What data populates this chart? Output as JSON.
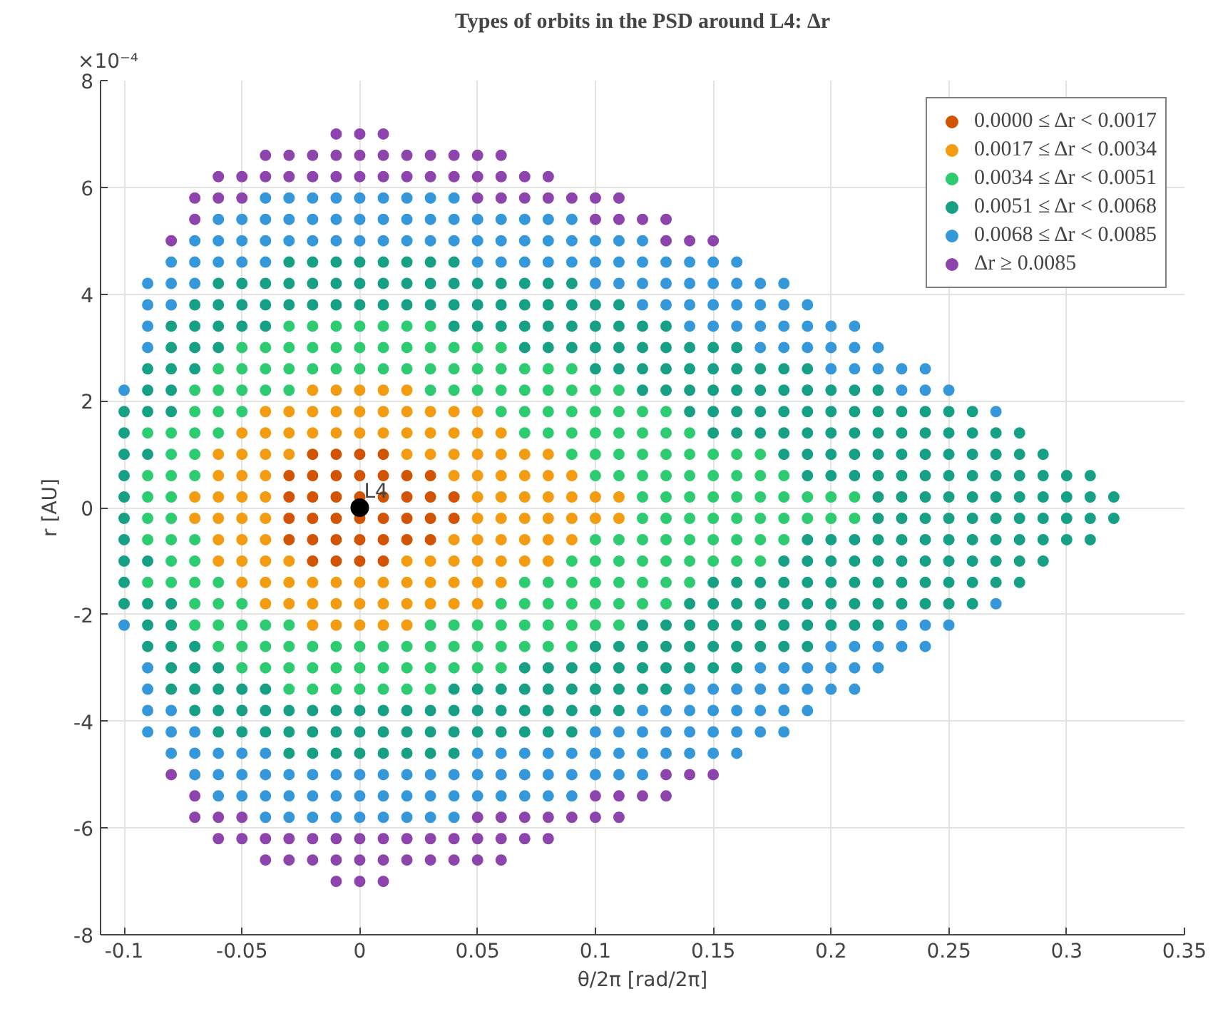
{
  "chart_data": {
    "type": "scatter",
    "title": "Types of orbits in the PSD around L4: Δr",
    "xlabel": "θ/2π [rad/2π]",
    "ylabel": "r [AU]",
    "annotations": [
      "×10⁻⁴",
      {
        "text": "L4",
        "x": 0,
        "y": 0
      }
    ],
    "xlim": [
      -0.11,
      0.35
    ],
    "ylim": [
      -8,
      8
    ],
    "xticks": [
      -0.1,
      -0.05,
      0,
      0.05,
      0.1,
      0.15,
      0.2,
      0.25,
      0.3,
      0.35
    ],
    "yticks": [
      -8,
      -6,
      -4,
      -2,
      0,
      2,
      4,
      6,
      8
    ],
    "grid": true,
    "legend": "top right",
    "marker": "circle",
    "series": [
      {
        "name": "0.0000 ≤ Δr < 0.0017",
        "color": "#d35400",
        "x": [
          -0.02,
          -0.01,
          0,
          0.01,
          -0.03,
          -0.02,
          -0.01,
          0,
          0.01,
          0.02,
          0.03,
          -0.03,
          -0.02,
          -0.01,
          0,
          0.01,
          0.02,
          0.03,
          0.04,
          -0.02,
          -0.01,
          0,
          0.01,
          -0.03,
          -0.02,
          -0.01,
          0,
          0.01,
          0.02,
          0.03,
          -0.03,
          -0.02,
          -0.01,
          0,
          0.01,
          0.02,
          0.03,
          0.04
        ],
        "values": [
          1,
          1,
          1,
          1,
          0.6,
          0.6,
          0.6,
          0.6,
          0.6,
          0.6,
          0.6,
          0.2,
          0.2,
          0.2,
          0.2,
          0.2,
          0.2,
          0.2,
          0.2,
          -1,
          -1,
          -1,
          -1,
          -0.6,
          -0.6,
          -0.6,
          -0.6,
          -0.6,
          -0.6,
          -0.6,
          -0.2,
          -0.2,
          -0.2,
          -0.2,
          -0.2,
          -0.2,
          -0.2,
          -0.2
        ]
      },
      {
        "name": "0.0017 ≤ Δr < 0.0034",
        "color": "#f39c12",
        "x": [
          -0.02,
          -0.01,
          0,
          0.01,
          0.02,
          -0.04,
          -0.03,
          -0.02,
          -0.01,
          0,
          0.01,
          0.02,
          0.03,
          0.04,
          0.05,
          -0.05,
          -0.04,
          -0.03,
          -0.02,
          -0.01,
          0,
          0.01,
          0.02,
          0.03,
          0.04,
          0.05,
          0.06,
          -0.06,
          -0.05,
          -0.04,
          -0.03,
          0.02,
          0.03,
          0.04,
          0.05,
          0.06,
          0.07,
          0.08,
          -0.06,
          -0.05,
          -0.04,
          0.04,
          0.05,
          0.06,
          0.07,
          0.08,
          0.09,
          -0.07,
          -0.06,
          -0.05,
          -0.04,
          0.05,
          0.06,
          0.07,
          0.08,
          0.09,
          0.1,
          0.11,
          -0.02,
          -0.01,
          0,
          0.01,
          0.02,
          -0.04,
          -0.03,
          -0.02,
          -0.01,
          0,
          0.01,
          0.02,
          0.03,
          0.04,
          0.05,
          -0.05,
          -0.04,
          -0.03,
          -0.02,
          -0.01,
          0,
          0.01,
          0.02,
          0.03,
          0.04,
          0.05,
          0.06,
          -0.06,
          -0.05,
          -0.04,
          -0.03,
          0.02,
          0.03,
          0.04,
          0.05,
          0.06,
          0.07,
          0.08,
          -0.06,
          -0.05,
          -0.04,
          0.04,
          0.05,
          0.06,
          0.07,
          0.08,
          0.09,
          -0.07,
          -0.06,
          -0.05,
          -0.04,
          0.05,
          0.06,
          0.07,
          0.08,
          0.09,
          0.1,
          0.11
        ],
        "values": [
          2.2,
          2.2,
          2.2,
          2.2,
          2.2,
          1.8,
          1.8,
          1.8,
          1.8,
          1.8,
          1.8,
          1.8,
          1.8,
          1.8,
          1.8,
          1.4,
          1.4,
          1.4,
          1.4,
          1.4,
          1.4,
          1.4,
          1.4,
          1.4,
          1.4,
          1.4,
          1.4,
          1,
          1,
          1,
          1,
          1,
          1,
          1,
          1,
          1,
          1,
          1,
          0.6,
          0.6,
          0.6,
          0.6,
          0.6,
          0.6,
          0.6,
          0.6,
          0.6,
          0.2,
          0.2,
          0.2,
          0.2,
          0.2,
          0.2,
          0.2,
          0.2,
          0.2,
          0.2,
          0.2,
          -2.2,
          -2.2,
          -2.2,
          -2.2,
          -2.2,
          -1.8,
          -1.8,
          -1.8,
          -1.8,
          -1.8,
          -1.8,
          -1.8,
          -1.8,
          -1.8,
          -1.8,
          -1.4,
          -1.4,
          -1.4,
          -1.4,
          -1.4,
          -1.4,
          -1.4,
          -1.4,
          -1.4,
          -1.4,
          -1.4,
          -1.4,
          -1,
          -1,
          -1,
          -1,
          -1,
          -1,
          -1,
          -1,
          -1,
          -1,
          -1,
          -0.6,
          -0.6,
          -0.6,
          -0.6,
          -0.6,
          -0.6,
          -0.6,
          -0.6,
          -0.6,
          -0.2,
          -0.2,
          -0.2,
          -0.2,
          -0.2,
          -0.2,
          -0.2,
          -0.2,
          -0.2,
          -0.2,
          -0.2
        ]
      },
      {
        "name": "0.0034 ≤ Δr < 0.0051",
        "color": "#2ecc71",
        "x": [
          -0.03,
          -0.02,
          -0.01,
          0,
          0.01,
          0.02,
          0.03,
          -0.05,
          -0.04,
          -0.03,
          -0.02,
          -0.01,
          0,
          0.01,
          0.02,
          0.03,
          0.04,
          0.05,
          0.06,
          -0.06,
          -0.05,
          -0.04,
          -0.03,
          -0.02,
          -0.01,
          0,
          0.01,
          0.02,
          0.03,
          0.04,
          0.05,
          0.06,
          0.07,
          0.08,
          0.09,
          -0.07,
          -0.06,
          -0.05,
          -0.04,
          -0.03,
          0.03,
          0.04,
          0.05,
          0.06,
          0.07,
          0.08,
          0.09,
          0.1,
          0.11,
          -0.07,
          -0.06,
          -0.05,
          0.06,
          0.07,
          0.08,
          0.09,
          0.1,
          0.11,
          0.12,
          0.13,
          -0.09,
          -0.08,
          -0.07,
          -0.06,
          0.07,
          0.08,
          0.09,
          0.1,
          0.11,
          0.12,
          0.13,
          0.14,
          -0.08,
          -0.07,
          0.09,
          0.1,
          0.11,
          0.12,
          0.13,
          0.14,
          0.15,
          0.16,
          0.17,
          -0.09,
          -0.08,
          -0.07,
          0.1,
          0.11,
          0.12,
          0.13,
          0.14,
          0.15,
          0.16,
          0.17,
          0.18,
          -0.09,
          -0.08,
          0.12,
          0.13,
          0.14,
          0.15,
          0.16,
          0.17,
          0.18,
          0.19,
          0.2,
          0.21,
          -0.03,
          -0.02,
          -0.01,
          0,
          0.01,
          0.02,
          0.03,
          -0.05,
          -0.04,
          -0.03,
          -0.02,
          -0.01,
          0,
          0.01,
          0.02,
          0.03,
          0.04,
          0.05,
          0.06,
          -0.06,
          -0.05,
          -0.04,
          -0.03,
          -0.02,
          -0.01,
          0,
          0.01,
          0.02,
          0.03,
          0.04,
          0.05,
          0.06,
          0.07,
          0.08,
          0.09,
          -0.07,
          -0.06,
          -0.05,
          -0.04,
          -0.03,
          0.03,
          0.04,
          0.05,
          0.06,
          0.07,
          0.08,
          0.09,
          0.1,
          0.11,
          -0.07,
          -0.06,
          -0.05,
          0.06,
          0.07,
          0.08,
          0.09,
          0.1,
          0.11,
          0.12,
          0.13,
          -0.09,
          -0.08,
          -0.07,
          -0.06,
          0.07,
          0.08,
          0.09,
          0.1,
          0.11,
          0.12,
          0.13,
          0.14,
          -0.08,
          -0.07,
          0.09,
          0.1,
          0.11,
          0.12,
          0.13,
          0.14,
          0.15,
          0.16,
          0.17,
          -0.09,
          -0.08,
          -0.07,
          0.1,
          0.11,
          0.12,
          0.13,
          0.14,
          0.15,
          0.16,
          0.17,
          0.18,
          -0.09,
          -0.08,
          0.12,
          0.13,
          0.14,
          0.15,
          0.16,
          0.17,
          0.18,
          0.19,
          0.2,
          0.21
        ],
        "values": [
          3.4,
          3.4,
          3.4,
          3.4,
          3.4,
          3.4,
          3.4,
          3,
          3,
          3,
          3,
          3,
          3,
          3,
          3,
          3,
          3,
          3,
          3,
          2.6,
          2.6,
          2.6,
          2.6,
          2.6,
          2.6,
          2.6,
          2.6,
          2.6,
          2.6,
          2.6,
          2.6,
          2.6,
          2.6,
          2.6,
          2.6,
          2.2,
          2.2,
          2.2,
          2.2,
          2.2,
          2.2,
          2.2,
          2.2,
          2.2,
          2.2,
          2.2,
          2.2,
          2.2,
          2.2,
          1.8,
          1.8,
          1.8,
          1.8,
          1.8,
          1.8,
          1.8,
          1.8,
          1.8,
          1.8,
          1.8,
          1.4,
          1.4,
          1.4,
          1.4,
          1.4,
          1.4,
          1.4,
          1.4,
          1.4,
          1.4,
          1.4,
          1.4,
          1,
          1,
          1,
          1,
          1,
          1,
          1,
          1,
          1,
          1,
          1,
          0.6,
          0.6,
          0.6,
          0.6,
          0.6,
          0.6,
          0.6,
          0.6,
          0.6,
          0.6,
          0.6,
          0.6,
          0.2,
          0.2,
          0.2,
          0.2,
          0.2,
          0.2,
          0.2,
          0.2,
          0.2,
          0.2,
          0.2,
          0.2,
          -3.4,
          -3.4,
          -3.4,
          -3.4,
          -3.4,
          -3.4,
          -3.4,
          -3,
          -3,
          -3,
          -3,
          -3,
          -3,
          -3,
          -3,
          -3,
          -3,
          -3,
          -3,
          -2.6,
          -2.6,
          -2.6,
          -2.6,
          -2.6,
          -2.6,
          -2.6,
          -2.6,
          -2.6,
          -2.6,
          -2.6,
          -2.6,
          -2.6,
          -2.6,
          -2.6,
          -2.6,
          -2.2,
          -2.2,
          -2.2,
          -2.2,
          -2.2,
          -2.2,
          -2.2,
          -2.2,
          -2.2,
          -2.2,
          -2.2,
          -2.2,
          -2.2,
          -2.2,
          -1.8,
          -1.8,
          -1.8,
          -1.8,
          -1.8,
          -1.8,
          -1.8,
          -1.8,
          -1.8,
          -1.8,
          -1.8,
          -1.4,
          -1.4,
          -1.4,
          -1.4,
          -1.4,
          -1.4,
          -1.4,
          -1.4,
          -1.4,
          -1.4,
          -1.4,
          -1.4,
          -1,
          -1,
          -1,
          -1,
          -1,
          -1,
          -1,
          -1,
          -1,
          -1,
          -1,
          -0.6,
          -0.6,
          -0.6,
          -0.6,
          -0.6,
          -0.6,
          -0.6,
          -0.6,
          -0.6,
          -0.6,
          -0.6,
          -0.6,
          -0.2,
          -0.2,
          -0.2,
          -0.2,
          -0.2,
          -0.2,
          -0.2,
          -0.2,
          -0.2,
          -0.2,
          -0.2,
          -0.2
        ]
      },
      {
        "name": "0.0051 ≤ Δr < 0.0068",
        "color": "#16a085",
        "x": [
          -0.03,
          -0.02,
          -0.01,
          0,
          0.01,
          0.02,
          0.03,
          0.04,
          -0.06,
          -0.05,
          -0.04,
          -0.03,
          -0.02,
          -0.01,
          0,
          0.01,
          0.02,
          0.03,
          0.04,
          0.05,
          0.06,
          0.07,
          0.08,
          0.09,
          -0.07,
          -0.06,
          -0.05,
          -0.04,
          -0.03,
          -0.02,
          -0.01,
          0,
          0.01,
          0.02,
          0.03,
          0.04,
          0.05,
          0.06,
          0.07,
          0.08,
          0.09,
          0.1,
          0.11,
          -0.08,
          -0.07,
          -0.06,
          -0.05,
          -0.04,
          0.04,
          0.05,
          0.06,
          0.07,
          0.08,
          0.09,
          0.1,
          0.11,
          0.12,
          0.13,
          -0.08,
          -0.07,
          -0.06,
          0.07,
          0.08,
          0.09,
          0.1,
          0.11,
          0.12,
          0.13,
          0.14,
          0.15,
          0.16,
          -0.09,
          -0.08,
          -0.07,
          0.1,
          0.11,
          0.12,
          0.13,
          0.14,
          0.15,
          0.16,
          0.17,
          0.18,
          0.19,
          -0.09,
          -0.08,
          0.12,
          0.13,
          0.14,
          0.15,
          0.16,
          0.17,
          0.18,
          0.19,
          0.2,
          0.21,
          0.22,
          -0.1,
          -0.09,
          -0.08,
          0.14,
          0.15,
          0.16,
          0.17,
          0.18,
          0.19,
          0.2,
          0.21,
          0.22,
          0.23,
          0.24,
          0.25,
          0.26,
          -0.1,
          0.15,
          0.16,
          0.17,
          0.18,
          0.19,
          0.2,
          0.21,
          0.22,
          0.23,
          0.24,
          0.25,
          0.26,
          0.27,
          0.28,
          -0.1,
          -0.09,
          0.18,
          0.19,
          0.2,
          0.21,
          0.22,
          0.23,
          0.24,
          0.25,
          0.26,
          0.27,
          0.28,
          0.29,
          -0.1,
          0.19,
          0.2,
          0.21,
          0.22,
          0.23,
          0.24,
          0.25,
          0.26,
          0.27,
          0.28,
          0.29,
          0.3,
          0.31,
          -0.1,
          0.22,
          0.23,
          0.24,
          0.25,
          0.26,
          0.27,
          0.28,
          0.29,
          0.3,
          0.31,
          0.32,
          -0.03,
          -0.02,
          -0.01,
          0,
          0.01,
          0.02,
          0.03,
          0.04,
          -0.06,
          -0.05,
          -0.04,
          -0.03,
          -0.02,
          -0.01,
          0,
          0.01,
          0.02,
          0.03,
          0.04,
          0.05,
          0.06,
          0.07,
          0.08,
          0.09,
          -0.07,
          -0.06,
          -0.05,
          -0.04,
          -0.03,
          -0.02,
          -0.01,
          0,
          0.01,
          0.02,
          0.03,
          0.04,
          0.05,
          0.06,
          0.07,
          0.08,
          0.09,
          0.1,
          0.11,
          -0.08,
          -0.07,
          -0.06,
          -0.05,
          -0.04,
          0.04,
          0.05,
          0.06,
          0.07,
          0.08,
          0.09,
          0.1,
          0.11,
          0.12,
          0.13,
          -0.08,
          -0.07,
          -0.06,
          0.07,
          0.08,
          0.09,
          0.1,
          0.11,
          0.12,
          0.13,
          0.14,
          0.15,
          0.16,
          -0.09,
          -0.08,
          -0.07,
          0.1,
          0.11,
          0.12,
          0.13,
          0.14,
          0.15,
          0.16,
          0.17,
          0.18,
          0.19,
          -0.09,
          -0.08,
          0.12,
          0.13,
          0.14,
          0.15,
          0.16,
          0.17,
          0.18,
          0.19,
          0.2,
          0.21,
          0.22,
          -0.1,
          -0.09,
          -0.08,
          0.14,
          0.15,
          0.16,
          0.17,
          0.18,
          0.19,
          0.2,
          0.21,
          0.22,
          0.23,
          0.24,
          0.25,
          0.26,
          -0.1,
          0.15,
          0.16,
          0.17,
          0.18,
          0.19,
          0.2,
          0.21,
          0.22,
          0.23,
          0.24,
          0.25,
          0.26,
          0.27,
          0.28,
          -0.1,
          -0.09,
          0.18,
          0.19,
          0.2,
          0.21,
          0.22,
          0.23,
          0.24,
          0.25,
          0.26,
          0.27,
          0.28,
          0.29,
          -0.1,
          0.19,
          0.2,
          0.21,
          0.22,
          0.23,
          0.24,
          0.25,
          0.26,
          0.27,
          0.28,
          0.29,
          0.3,
          0.31,
          -0.1,
          0.22,
          0.23,
          0.24,
          0.25,
          0.26,
          0.27,
          0.28,
          0.29,
          0.3,
          0.31,
          0.32
        ],
        "values": [
          4.6,
          4.6,
          4.6,
          4.6,
          4.6,
          4.6,
          4.6,
          4.6,
          4.2,
          4.2,
          4.2,
          4.2,
          4.2,
          4.2,
          4.2,
          4.2,
          4.2,
          4.2,
          4.2,
          4.2,
          4.2,
          4.2,
          4.2,
          4.2,
          3.8,
          3.8,
          3.8,
          3.8,
          3.8,
          3.8,
          3.8,
          3.8,
          3.8,
          3.8,
          3.8,
          3.8,
          3.8,
          3.8,
          3.8,
          3.8,
          3.8,
          3.8,
          3.8,
          3.4,
          3.4,
          3.4,
          3.4,
          3.4,
          3.4,
          3.4,
          3.4,
          3.4,
          3.4,
          3.4,
          3.4,
          3.4,
          3.4,
          3.4,
          3,
          3,
          3,
          3,
          3,
          3,
          3,
          3,
          3,
          3,
          3,
          3,
          3,
          2.6,
          2.6,
          2.6,
          2.6,
          2.6,
          2.6,
          2.6,
          2.6,
          2.6,
          2.6,
          2.6,
          2.6,
          2.6,
          2.2,
          2.2,
          2.2,
          2.2,
          2.2,
          2.2,
          2.2,
          2.2,
          2.2,
          2.2,
          2.2,
          2.2,
          2.2,
          1.8,
          1.8,
          1.8,
          1.8,
          1.8,
          1.8,
          1.8,
          1.8,
          1.8,
          1.8,
          1.8,
          1.8,
          1.8,
          1.8,
          1.8,
          1.8,
          1.4,
          1.4,
          1.4,
          1.4,
          1.4,
          1.4,
          1.4,
          1.4,
          1.4,
          1.4,
          1.4,
          1.4,
          1.4,
          1.4,
          1.4,
          1,
          1,
          1,
          1,
          1,
          1,
          1,
          1,
          1,
          1,
          1,
          1,
          1,
          1,
          0.6,
          0.6,
          0.6,
          0.6,
          0.6,
          0.6,
          0.6,
          0.6,
          0.6,
          0.6,
          0.6,
          0.6,
          0.6,
          0.6,
          0.2,
          0.2,
          0.2,
          0.2,
          0.2,
          0.2,
          0.2,
          0.2,
          0.2,
          0.2,
          0.2,
          0.2,
          -4.6,
          -4.6,
          -4.6,
          -4.6,
          -4.6,
          -4.6,
          -4.6,
          -4.6,
          -4.2,
          -4.2,
          -4.2,
          -4.2,
          -4.2,
          -4.2,
          -4.2,
          -4.2,
          -4.2,
          -4.2,
          -4.2,
          -4.2,
          -4.2,
          -4.2,
          -4.2,
          -4.2,
          -3.8,
          -3.8,
          -3.8,
          -3.8,
          -3.8,
          -3.8,
          -3.8,
          -3.8,
          -3.8,
          -3.8,
          -3.8,
          -3.8,
          -3.8,
          -3.8,
          -3.8,
          -3.8,
          -3.8,
          -3.8,
          -3.8,
          -3.4,
          -3.4,
          -3.4,
          -3.4,
          -3.4,
          -3.4,
          -3.4,
          -3.4,
          -3.4,
          -3.4,
          -3.4,
          -3.4,
          -3.4,
          -3.4,
          -3.4,
          -3,
          -3,
          -3,
          -3,
          -3,
          -3,
          -3,
          -3,
          -3,
          -3,
          -3,
          -3,
          -3,
          -2.6,
          -2.6,
          -2.6,
          -2.6,
          -2.6,
          -2.6,
          -2.6,
          -2.6,
          -2.6,
          -2.6,
          -2.6,
          -2.6,
          -2.6,
          -2.2,
          -2.2,
          -2.2,
          -2.2,
          -2.2,
          -2.2,
          -2.2,
          -2.2,
          -2.2,
          -2.2,
          -2.2,
          -2.2,
          -2.2,
          -1.8,
          -1.8,
          -1.8,
          -1.8,
          -1.8,
          -1.8,
          -1.8,
          -1.8,
          -1.8,
          -1.8,
          -1.8,
          -1.8,
          -1.8,
          -1.8,
          -1.8,
          -1.8,
          -1.4,
          -1.4,
          -1.4,
          -1.4,
          -1.4,
          -1.4,
          -1.4,
          -1.4,
          -1.4,
          -1.4,
          -1.4,
          -1.4,
          -1.4,
          -1.4,
          -1.4,
          -1,
          -1,
          -1,
          -1,
          -1,
          -1,
          -1,
          -1,
          -1,
          -1,
          -1,
          -1,
          -1,
          -1,
          -0.6,
          -0.6,
          -0.6,
          -0.6,
          -0.6,
          -0.6,
          -0.6,
          -0.6,
          -0.6,
          -0.6,
          -0.6,
          -0.6,
          -0.6,
          -0.6,
          -0.2,
          -0.2,
          -0.2,
          -0.2,
          -0.2,
          -0.2,
          -0.2,
          -0.2,
          -0.2,
          -0.2,
          -0.2,
          -0.2
        ]
      },
      {
        "name": "0.0068 ≤ Δr < 0.0085",
        "color": "#3498db",
        "x": [
          -0.04,
          -0.03,
          -0.02,
          -0.01,
          0,
          0.01,
          0.02,
          0.03,
          0.04,
          -0.06,
          -0.05,
          -0.04,
          -0.03,
          -0.02,
          -0.01,
          0,
          0.01,
          0.02,
          0.03,
          0.04,
          0.05,
          0.06,
          0.07,
          0.08,
          0.09,
          -0.07,
          -0.06,
          -0.05,
          -0.04,
          -0.03,
          -0.02,
          -0.01,
          0,
          0.01,
          0.02,
          0.03,
          0.04,
          0.05,
          0.06,
          0.07,
          0.08,
          0.09,
          0.1,
          0.11,
          0.12,
          -0.08,
          -0.07,
          -0.06,
          -0.05,
          -0.04,
          0.05,
          0.06,
          0.07,
          0.08,
          0.09,
          0.1,
          0.11,
          0.12,
          0.13,
          0.14,
          0.15,
          0.16,
          -0.09,
          -0.08,
          -0.07,
          0.1,
          0.11,
          0.12,
          0.13,
          0.14,
          0.15,
          0.16,
          0.17,
          0.18,
          -0.09,
          -0.08,
          0.12,
          0.13,
          0.14,
          0.15,
          0.16,
          0.17,
          0.18,
          0.19,
          -0.09,
          0.14,
          0.15,
          0.16,
          0.17,
          0.18,
          0.19,
          0.2,
          0.21,
          -0.09,
          0.17,
          0.18,
          0.19,
          0.2,
          0.21,
          0.22,
          0.2,
          0.21,
          0.22,
          0.23,
          0.24,
          -0.1,
          0.23,
          0.24,
          0.25,
          0.27,
          -0.04,
          -0.03,
          -0.02,
          -0.01,
          0,
          0.01,
          0.02,
          0.03,
          0.04,
          -0.06,
          -0.05,
          -0.04,
          -0.03,
          -0.02,
          -0.01,
          0,
          0.01,
          0.02,
          0.03,
          0.04,
          0.05,
          0.06,
          0.07,
          0.08,
          0.09,
          -0.07,
          -0.06,
          -0.05,
          -0.04,
          -0.03,
          -0.02,
          -0.01,
          0,
          0.01,
          0.02,
          0.03,
          0.04,
          0.05,
          0.06,
          0.07,
          0.08,
          0.09,
          0.1,
          0.11,
          0.12,
          -0.08,
          -0.07,
          -0.06,
          -0.05,
          -0.04,
          0.05,
          0.06,
          0.07,
          0.08,
          0.09,
          0.1,
          0.11,
          0.12,
          0.13,
          0.14,
          0.15,
          0.16,
          -0.09,
          -0.08,
          -0.07,
          0.1,
          0.11,
          0.12,
          0.13,
          0.14,
          0.15,
          0.16,
          0.17,
          0.18,
          -0.09,
          -0.08,
          0.12,
          0.13,
          0.14,
          0.15,
          0.16,
          0.17,
          0.18,
          0.19,
          -0.09,
          0.14,
          0.15,
          0.16,
          0.17,
          0.18,
          0.19,
          0.2,
          0.21,
          -0.09,
          0.17,
          0.18,
          0.19,
          0.2,
          0.21,
          0.22,
          0.2,
          0.21,
          0.22,
          0.23,
          0.24,
          -0.1,
          0.23,
          0.24,
          0.25,
          0.27
        ],
        "values": [
          5.8,
          5.8,
          5.8,
          5.8,
          5.8,
          5.8,
          5.8,
          5.8,
          5.8,
          5.4,
          5.4,
          5.4,
          5.4,
          5.4,
          5.4,
          5.4,
          5.4,
          5.4,
          5.4,
          5.4,
          5.4,
          5.4,
          5.4,
          5.4,
          5.4,
          5,
          5,
          5,
          5,
          5,
          5,
          5,
          5,
          5,
          5,
          5,
          5,
          5,
          5,
          5,
          5,
          5,
          5,
          5,
          5,
          4.6,
          4.6,
          4.6,
          4.6,
          4.6,
          4.6,
          4.6,
          4.6,
          4.6,
          4.6,
          4.6,
          4.6,
          4.6,
          4.6,
          4.6,
          4.6,
          4.6,
          4.2,
          4.2,
          4.2,
          4.2,
          4.2,
          4.2,
          4.2,
          4.2,
          4.2,
          4.2,
          4.2,
          4.2,
          3.8,
          3.8,
          3.8,
          3.8,
          3.8,
          3.8,
          3.8,
          3.8,
          3.8,
          3.8,
          3.4,
          3.4,
          3.4,
          3.4,
          3.4,
          3.4,
          3.4,
          3.4,
          3.4,
          3,
          3,
          3,
          3,
          3,
          3,
          3,
          2.6,
          2.6,
          2.6,
          2.6,
          2.6,
          2.2,
          2.2,
          2.2,
          2.2,
          1.8,
          -5.8,
          -5.8,
          -5.8,
          -5.8,
          -5.8,
          -5.8,
          -5.8,
          -5.8,
          -5.8,
          -5.4,
          -5.4,
          -5.4,
          -5.4,
          -5.4,
          -5.4,
          -5.4,
          -5.4,
          -5.4,
          -5.4,
          -5.4,
          -5.4,
          -5.4,
          -5.4,
          -5.4,
          -5.4,
          -5,
          -5,
          -5,
          -5,
          -5,
          -5,
          -5,
          -5,
          -5,
          -5,
          -5,
          -5,
          -5,
          -5,
          -5,
          -5,
          -5,
          -5,
          -5,
          -5,
          -4.6,
          -4.6,
          -4.6,
          -4.6,
          -4.6,
          -4.6,
          -4.6,
          -4.6,
          -4.6,
          -4.6,
          -4.6,
          -4.6,
          -4.6,
          -4.6,
          -4.6,
          -4.6,
          -4.6,
          -4.2,
          -4.2,
          -4.2,
          -4.2,
          -4.2,
          -4.2,
          -4.2,
          -4.2,
          -4.2,
          -4.2,
          -4.2,
          -4.2,
          -3.8,
          -3.8,
          -3.8,
          -3.8,
          -3.8,
          -3.8,
          -3.8,
          -3.8,
          -3.8,
          -3.8,
          -3.4,
          -3.4,
          -3.4,
          -3.4,
          -3.4,
          -3.4,
          -3.4,
          -3.4,
          -3.4,
          -3,
          -3,
          -3,
          -3,
          -3,
          -3,
          -3,
          -2.6,
          -2.6,
          -2.6,
          -2.6,
          -2.6,
          -2.2,
          -2.2,
          -2.2,
          -2.2,
          -1.8
        ]
      },
      {
        "name": "Δr ≥ 0.0085",
        "color": "#8e44ad",
        "x": [
          -0.01,
          0,
          0.01,
          -0.04,
          -0.03,
          -0.02,
          -0.01,
          0,
          0.01,
          0.02,
          0.03,
          0.04,
          0.05,
          0.06,
          -0.06,
          -0.05,
          -0.04,
          -0.03,
          -0.02,
          -0.01,
          0,
          0.01,
          0.02,
          0.03,
          0.04,
          0.05,
          0.06,
          0.07,
          0.08,
          -0.07,
          -0.06,
          -0.05,
          0.05,
          0.06,
          0.07,
          0.08,
          0.09,
          0.1,
          0.11,
          -0.07,
          0.1,
          0.11,
          0.12,
          0.13,
          -0.08,
          0.13,
          0.14,
          0.15,
          -0.01,
          0,
          0.01,
          -0.04,
          -0.03,
          -0.02,
          -0.01,
          0,
          0.01,
          0.02,
          0.03,
          0.04,
          0.05,
          0.06,
          -0.06,
          -0.05,
          -0.04,
          -0.03,
          -0.02,
          -0.01,
          0,
          0.01,
          0.02,
          0.03,
          0.04,
          0.05,
          0.06,
          0.07,
          0.08,
          -0.07,
          -0.06,
          -0.05,
          0.05,
          0.06,
          0.07,
          0.08,
          0.09,
          0.1,
          0.11,
          -0.07,
          0.1,
          0.11,
          0.12,
          0.13,
          -0.08,
          0.13,
          0.14,
          0.15
        ],
        "values": [
          7,
          7,
          7,
          6.6,
          6.6,
          6.6,
          6.6,
          6.6,
          6.6,
          6.6,
          6.6,
          6.6,
          6.6,
          6.6,
          6.2,
          6.2,
          6.2,
          6.2,
          6.2,
          6.2,
          6.2,
          6.2,
          6.2,
          6.2,
          6.2,
          6.2,
          6.2,
          6.2,
          6.2,
          5.8,
          5.8,
          5.8,
          5.8,
          5.8,
          5.8,
          5.8,
          5.8,
          5.8,
          5.8,
          5.4,
          5.4,
          5.4,
          5.4,
          5.4,
          5,
          5,
          5,
          5,
          -7,
          -7,
          -7,
          -6.6,
          -6.6,
          -6.6,
          -6.6,
          -6.6,
          -6.6,
          -6.6,
          -6.6,
          -6.6,
          -6.6,
          -6.6,
          -6.2,
          -6.2,
          -6.2,
          -6.2,
          -6.2,
          -6.2,
          -6.2,
          -6.2,
          -6.2,
          -6.2,
          -6.2,
          -6.2,
          -6.2,
          -6.2,
          -6.2,
          -5.8,
          -5.8,
          -5.8,
          -5.8,
          -5.8,
          -5.8,
          -5.8,
          -5.8,
          -5.8,
          -5.8,
          -5.4,
          -5.4,
          -5.4,
          -5.4,
          -5.4,
          -5,
          -5,
          -5,
          -5
        ]
      },
      {
        "color": "#000000",
        "x": [
          0
        ],
        "values": [
          0
        ]
      }
    ]
  }
}
